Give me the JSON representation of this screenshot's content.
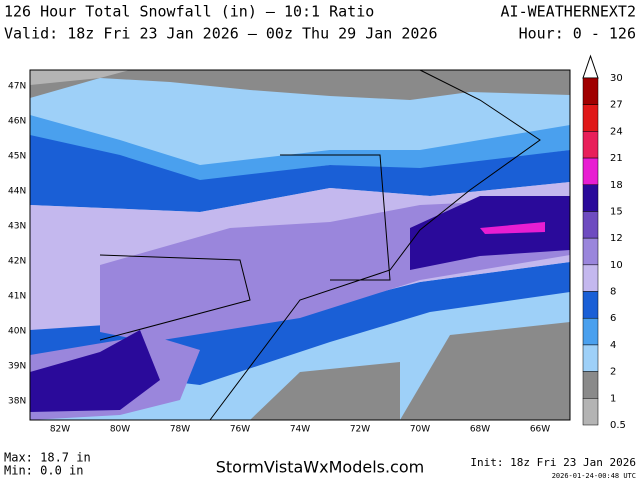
{
  "header": {
    "title": "126 Hour Total Snowfall (in) — 10:1 Ratio",
    "valid": "Valid: 18z Fri 23 Jan 2026 — 00z Thu 29 Jan 2026",
    "model": "AI-WEATHERNEXT2",
    "hours": "Hour: 0 - 126"
  },
  "map": {
    "lat_labels": [
      "47N",
      "46N",
      "45N",
      "44N",
      "43N",
      "42N",
      "41N",
      "40N",
      "39N",
      "38N"
    ],
    "lon_labels": [
      "82W",
      "80W",
      "78W",
      "76W",
      "74W",
      "72W",
      "70W",
      "68W",
      "66W"
    ]
  },
  "colorbar": {
    "levels": [
      30,
      27,
      24,
      21,
      18,
      15,
      12,
      10,
      8,
      6,
      4,
      2,
      1,
      0.5
    ],
    "colors": [
      "#a00000",
      "#e01818",
      "#e8205a",
      "#e81ed2",
      "#2a0a9a",
      "#6e4cc0",
      "#9a86dc",
      "#c4b8ee",
      "#1a5fd6",
      "#4aa0ee",
      "#9ed0f8",
      "#8a8a8a",
      "#b4b4b4"
    ]
  },
  "footer": {
    "max": "Max: 18.7 in",
    "min": "Min: 0.0 in",
    "site": "StormVistaWxModels.com",
    "init": "Init: 18z Fri 23 Jan 2026",
    "stamp": "2026-01-24-00:48 UTC"
  }
}
